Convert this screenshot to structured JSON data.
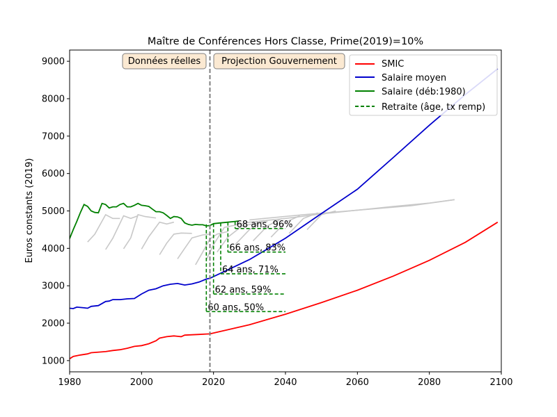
{
  "chart_data": {
    "type": "line",
    "title": "Maître de Conférences Hors Classe, Prime(2019)=10%",
    "xlabel": "",
    "ylabel": "Euros constants (2019)",
    "xlim": [
      1980,
      2100
    ],
    "ylim": [
      700,
      9300
    ],
    "x_ticks": [
      1980,
      2000,
      2020,
      2040,
      2060,
      2080,
      2100
    ],
    "y_ticks": [
      1000,
      2000,
      3000,
      4000,
      5000,
      6000,
      7000,
      8000,
      9000
    ],
    "grid": false,
    "legend_position": "top-right",
    "divider_year": 2019,
    "region_labels": {
      "left": "Données réelles",
      "right": "Projection Gouvernement"
    },
    "series": [
      {
        "name": "SMIC",
        "color": "#ff0000",
        "points": [
          [
            1980,
            1050
          ],
          [
            1981,
            1110
          ],
          [
            1983,
            1150
          ],
          [
            1985,
            1180
          ],
          [
            1986,
            1210
          ],
          [
            1990,
            1240
          ],
          [
            1992,
            1270
          ],
          [
            1994,
            1290
          ],
          [
            1996,
            1330
          ],
          [
            1998,
            1380
          ],
          [
            2000,
            1400
          ],
          [
            2002,
            1450
          ],
          [
            2004,
            1530
          ],
          [
            2005,
            1600
          ],
          [
            2007,
            1640
          ],
          [
            2009,
            1660
          ],
          [
            2010,
            1650
          ],
          [
            2011,
            1640
          ],
          [
            2012,
            1680
          ],
          [
            2014,
            1690
          ],
          [
            2016,
            1700
          ],
          [
            2018,
            1710
          ],
          [
            2019,
            1715
          ],
          [
            2030,
            1960
          ],
          [
            2040,
            2240
          ],
          [
            2050,
            2550
          ],
          [
            2060,
            2880
          ],
          [
            2070,
            3260
          ],
          [
            2080,
            3680
          ],
          [
            2090,
            4160
          ],
          [
            2099,
            4700
          ]
        ]
      },
      {
        "name": "Salaire moyen",
        "color": "#0000cc",
        "points": [
          [
            1980,
            2400
          ],
          [
            1981,
            2390
          ],
          [
            1982,
            2430
          ],
          [
            1984,
            2410
          ],
          [
            1985,
            2400
          ],
          [
            1986,
            2450
          ],
          [
            1988,
            2470
          ],
          [
            1990,
            2580
          ],
          [
            1991,
            2590
          ],
          [
            1992,
            2630
          ],
          [
            1994,
            2630
          ],
          [
            1996,
            2650
          ],
          [
            1998,
            2660
          ],
          [
            2000,
            2780
          ],
          [
            2002,
            2880
          ],
          [
            2004,
            2920
          ],
          [
            2006,
            3000
          ],
          [
            2008,
            3040
          ],
          [
            2010,
            3060
          ],
          [
            2012,
            3020
          ],
          [
            2014,
            3050
          ],
          [
            2016,
            3100
          ],
          [
            2018,
            3180
          ],
          [
            2019,
            3200
          ],
          [
            2030,
            3700
          ],
          [
            2040,
            4270
          ],
          [
            2050,
            4930
          ],
          [
            2060,
            5580
          ],
          [
            2070,
            6430
          ],
          [
            2080,
            7290
          ],
          [
            2090,
            8110
          ],
          [
            2099,
            8800
          ]
        ]
      },
      {
        "name": "Salaire (déb:1980)",
        "color": "#008000",
        "points": [
          [
            1980,
            4260
          ],
          [
            1981,
            4500
          ],
          [
            1982,
            4720
          ],
          [
            1983,
            4960
          ],
          [
            1984,
            5170
          ],
          [
            1985,
            5120
          ],
          [
            1986,
            5000
          ],
          [
            1987,
            4960
          ],
          [
            1988,
            4950
          ],
          [
            1989,
            5200
          ],
          [
            1990,
            5170
          ],
          [
            1991,
            5080
          ],
          [
            1992,
            5110
          ],
          [
            1993,
            5110
          ],
          [
            1994,
            5170
          ],
          [
            1995,
            5200
          ],
          [
            1996,
            5110
          ],
          [
            1997,
            5110
          ],
          [
            1998,
            5150
          ],
          [
            1999,
            5200
          ],
          [
            2000,
            5150
          ],
          [
            2001,
            5140
          ],
          [
            2002,
            5120
          ],
          [
            2003,
            5050
          ],
          [
            2004,
            4980
          ],
          [
            2005,
            4980
          ],
          [
            2006,
            4950
          ],
          [
            2007,
            4880
          ],
          [
            2008,
            4800
          ],
          [
            2009,
            4850
          ],
          [
            2010,
            4840
          ],
          [
            2011,
            4800
          ],
          [
            2012,
            4680
          ],
          [
            2013,
            4640
          ],
          [
            2014,
            4620
          ],
          [
            2015,
            4640
          ],
          [
            2016,
            4630
          ],
          [
            2017,
            4630
          ],
          [
            2018,
            4600
          ],
          [
            2019,
            4610
          ],
          [
            2020,
            4660
          ],
          [
            2022,
            4680
          ],
          [
            2024,
            4700
          ],
          [
            2026,
            4720
          ],
          [
            2027,
            4730
          ]
        ]
      },
      {
        "name": "Retraite (âge, tx remp)",
        "color": "#008000",
        "dashed": true,
        "points": []
      }
    ],
    "retirements": [
      {
        "label": "60 ans, 50%",
        "x": 2018,
        "x_end": 2040,
        "y": 2310,
        "top": 4640
      },
      {
        "label": "62 ans, 59%",
        "x": 2020,
        "x_end": 2040,
        "y": 2780,
        "top": 4660
      },
      {
        "label": "64 ans, 71%",
        "x": 2022,
        "x_end": 2040,
        "y": 3320,
        "top": 4680
      },
      {
        "label": "66 ans, 83%",
        "x": 2024,
        "x_end": 2040,
        "y": 3900,
        "top": 4700
      },
      {
        "label": "68 ans, 96%",
        "x": 2026,
        "x_end": 2040,
        "y": 4530,
        "top": 4720
      }
    ],
    "gray_curves": [
      [
        [
          1985,
          4170
        ],
        [
          1987,
          4380
        ],
        [
          1990,
          4900
        ],
        [
          1992,
          4800
        ],
        [
          1994,
          4800
        ]
      ],
      [
        [
          1990,
          3970
        ],
        [
          1992,
          4270
        ],
        [
          1995,
          4870
        ],
        [
          1997,
          4800
        ],
        [
          1999,
          4870
        ]
      ],
      [
        [
          1995,
          3990
        ],
        [
          1997,
          4280
        ],
        [
          1999,
          4900
        ],
        [
          2001,
          4850
        ],
        [
          2004,
          4810
        ]
      ],
      [
        [
          2000,
          3980
        ],
        [
          2002,
          4310
        ],
        [
          2005,
          4700
        ],
        [
          2007,
          4650
        ],
        [
          2009,
          4700
        ]
      ],
      [
        [
          2005,
          3830
        ],
        [
          2007,
          4140
        ],
        [
          2009,
          4380
        ],
        [
          2011,
          4410
        ],
        [
          2014,
          4400
        ]
      ],
      [
        [
          2010,
          3720
        ],
        [
          2012,
          4000
        ],
        [
          2014,
          4280
        ],
        [
          2017,
          4360
        ],
        [
          2019,
          4380
        ]
      ],
      [
        [
          2015,
          3560
        ],
        [
          2017,
          3900
        ],
        [
          2019,
          4250
        ],
        [
          2021,
          4380
        ],
        [
          2024,
          4450
        ]
      ],
      [
        [
          2018,
          3700
        ],
        [
          2020,
          4100
        ],
        [
          2023,
          4560
        ],
        [
          2030,
          4700
        ],
        [
          2040,
          4800
        ],
        [
          2050,
          4920
        ],
        [
          2060,
          5020
        ],
        [
          2070,
          5120
        ],
        [
          2080,
          5210
        ],
        [
          2087,
          5300
        ]
      ],
      [
        [
          2021,
          3900
        ],
        [
          2024,
          4300
        ],
        [
          2028,
          4600
        ],
        [
          2035,
          4720
        ]
      ],
      [
        [
          2026,
          4100
        ],
        [
          2030,
          4500
        ],
        [
          2034,
          4750
        ]
      ],
      [
        [
          2031,
          4200
        ],
        [
          2035,
          4600
        ],
        [
          2039,
          4800
        ]
      ],
      [
        [
          2036,
          4300
        ],
        [
          2040,
          4700
        ],
        [
          2044,
          4870
        ]
      ],
      [
        [
          2041,
          4400
        ],
        [
          2045,
          4800
        ],
        [
          2049,
          4950
        ]
      ],
      [
        [
          2046,
          4500
        ],
        [
          2050,
          4900
        ],
        [
          2054,
          5000
        ]
      ],
      [
        [
          2030,
          4760
        ],
        [
          2045,
          4900
        ],
        [
          2060,
          5020
        ],
        [
          2075,
          5140
        ],
        [
          2087,
          5300
        ]
      ]
    ]
  }
}
